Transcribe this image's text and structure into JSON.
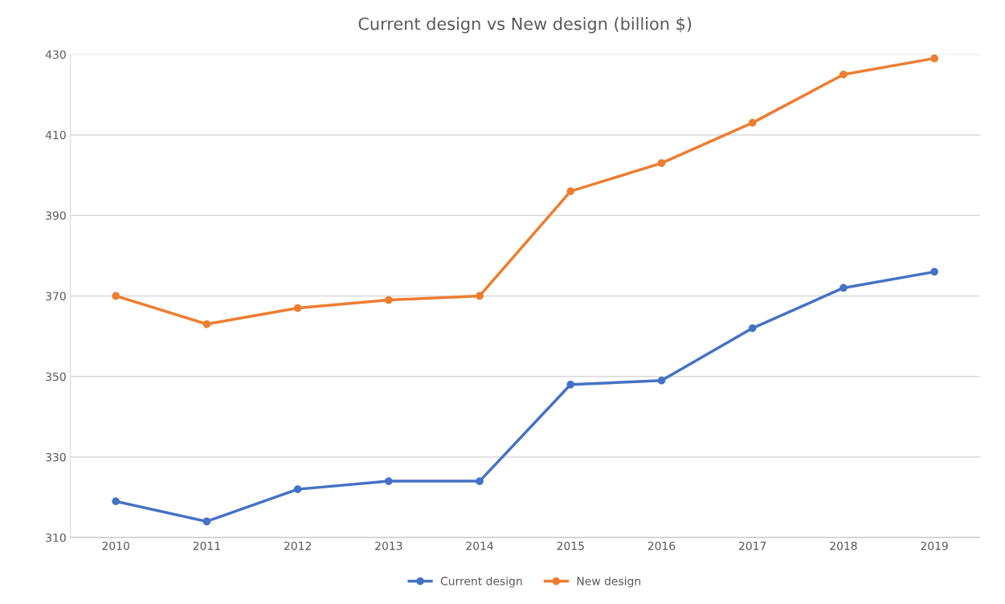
{
  "chart_data": {
    "type": "line",
    "title": "Current design vs New design (billion $)",
    "categories": [
      "2010",
      "2011",
      "2012",
      "2013",
      "2014",
      "2015",
      "2016",
      "2017",
      "2018",
      "2019"
    ],
    "series": [
      {
        "name": "Current design",
        "color": "#4472c4",
        "values": [
          319,
          314,
          322,
          324,
          324,
          348,
          349,
          362,
          372,
          376
        ]
      },
      {
        "name": "New design",
        "color": "#ed7d31",
        "values": [
          370,
          363,
          367,
          369,
          370,
          396,
          403,
          413,
          425,
          429
        ]
      }
    ],
    "ylim": [
      310,
      430
    ],
    "yticks": [
      310,
      330,
      350,
      370,
      390,
      410,
      430
    ],
    "grid": "y",
    "legend": "bottom",
    "marker": "circle",
    "line_style": "solid"
  }
}
